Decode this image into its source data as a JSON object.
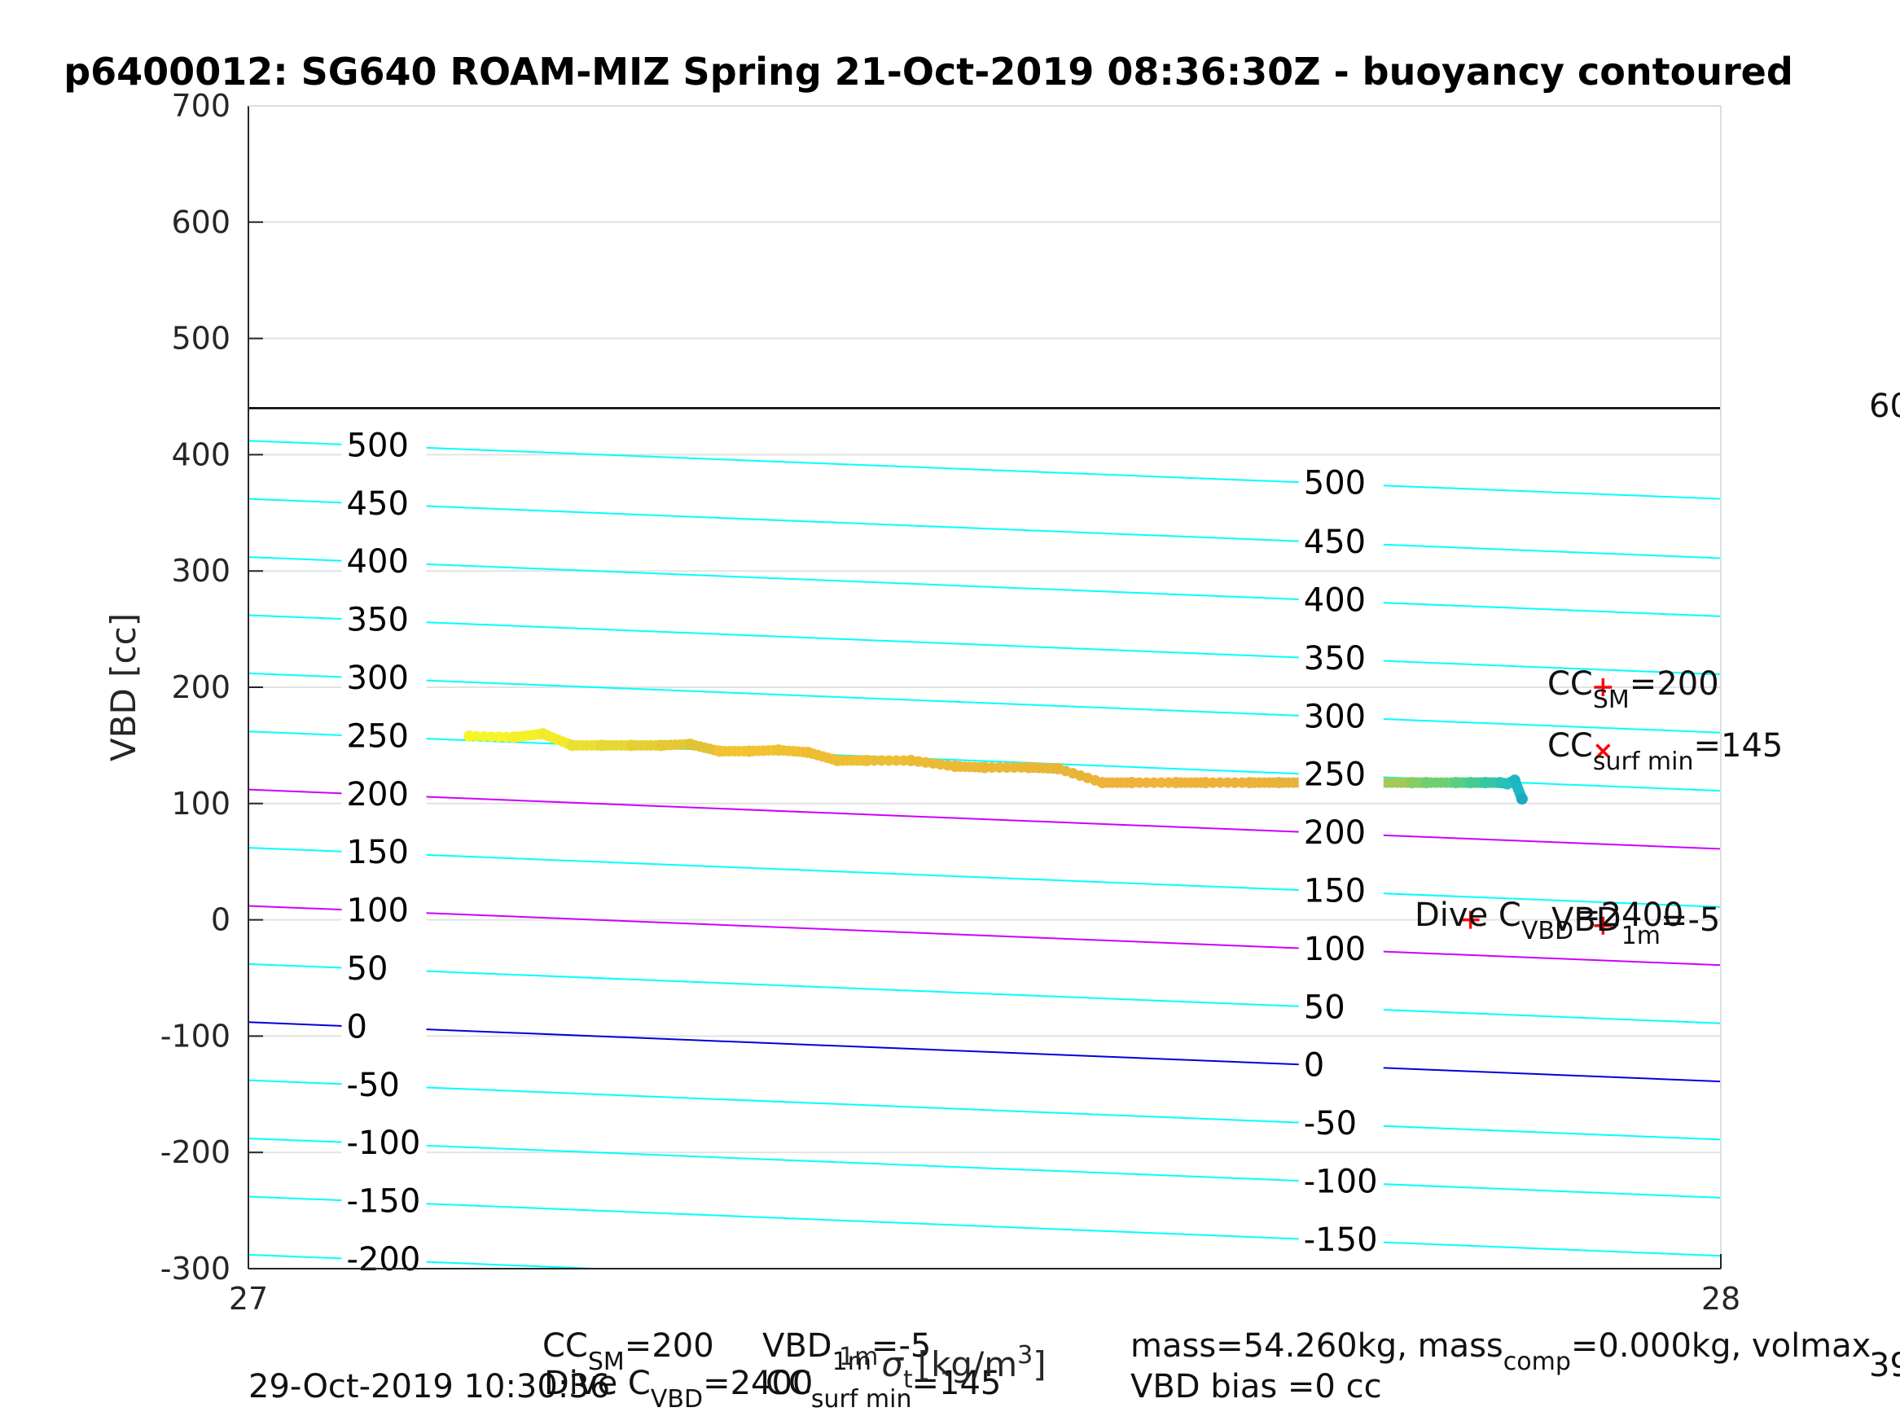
{
  "chart_data": {
    "type": "scatter",
    "title": "p6400012: SG640 ROAM-MIZ Spring 21-Oct-2019 08:36:30Z - buoyancy contoured",
    "ylabel": "VBD [cc]",
    "xlabel": "1m σ_t [kg/m^3]",
    "xlim": [
      27,
      28
    ],
    "ylim": [
      -300,
      700
    ],
    "xticks": [
      "27",
      "28"
    ],
    "yticks": [
      "700",
      "600",
      "500",
      "400",
      "300",
      "200",
      "100",
      "0",
      "-100",
      "-200",
      "-300"
    ],
    "grid": true,
    "horizontal_line": {
      "value": 440,
      "color": "#000000"
    },
    "contours": [
      {
        "level": 500,
        "y_left": 412,
        "y_right": 362,
        "color": "#00ffff",
        "label": "500"
      },
      {
        "level": 450,
        "y_left": 362,
        "y_right": 311,
        "color": "#00ffff",
        "label": "450"
      },
      {
        "level": 400,
        "y_left": 312,
        "y_right": 261,
        "color": "#00ffff",
        "label": "400"
      },
      {
        "level": 350,
        "y_left": 262,
        "y_right": 211,
        "color": "#00ffff",
        "label": "350"
      },
      {
        "level": 300,
        "y_left": 212,
        "y_right": 161,
        "color": "#00ffff",
        "label": "300"
      },
      {
        "level": 250,
        "y_left": 162,
        "y_right": 111,
        "color": "#00ffff",
        "label": "250"
      },
      {
        "level": 200,
        "y_left": 112,
        "y_right": 61,
        "color": "#cc00ff",
        "label": "200"
      },
      {
        "level": 150,
        "y_left": 62,
        "y_right": 11,
        "color": "#00ffff",
        "label": "150"
      },
      {
        "level": 100,
        "y_left": 12,
        "y_right": -39,
        "color": "#cc00ff",
        "label": "100"
      },
      {
        "level": 50,
        "y_left": -38,
        "y_right": -89,
        "color": "#00ffff",
        "label": "50"
      },
      {
        "level": 0,
        "y_left": -88,
        "y_right": -139,
        "color": "#0000dd",
        "label": "0"
      },
      {
        "level": -50,
        "y_left": -138,
        "y_right": -189,
        "color": "#00ffff",
        "label": "-50"
      },
      {
        "level": -100,
        "y_left": -188,
        "y_right": -239,
        "color": "#00ffff",
        "label": "-100"
      },
      {
        "level": -150,
        "y_left": -238,
        "y_right": -289,
        "color": "#00ffff",
        "label": "-150"
      },
      {
        "level": -200,
        "y_left": -288,
        "y_right": -339,
        "color": "#00ffff",
        "label": "-200"
      }
    ],
    "series": [
      {
        "x": [
          27.15,
          27.18,
          27.2,
          27.22,
          27.24,
          27.26,
          27.28,
          27.3,
          27.32,
          27.34,
          27.36,
          27.38,
          27.4,
          27.42,
          27.45,
          27.48,
          27.5,
          27.53,
          27.55,
          27.58,
          27.6,
          27.63,
          27.65,
          27.68,
          27.7,
          27.72,
          27.75,
          27.77,
          27.79,
          27.8,
          27.82,
          27.83,
          27.84,
          27.85,
          27.855,
          27.86,
          27.865
        ],
        "y": [
          158,
          157,
          160,
          150,
          150,
          150,
          150,
          151,
          145,
          145,
          146,
          144,
          137,
          137,
          137,
          132,
          131,
          131,
          130,
          118,
          118,
          118,
          118,
          118,
          118,
          118,
          118,
          118,
          118,
          118,
          118,
          118,
          118,
          118,
          117,
          120,
          104
        ],
        "colors": [
          "#f7f52a",
          "#f5f02a",
          "#f4ea2c",
          "#eadf33",
          "#e8d733",
          "#e6cf34",
          "#e5c834",
          "#e3c235",
          "#f3c430",
          "#f2c231",
          "#f0c032",
          "#f0bc33",
          "#eebf33",
          "#edbd34",
          "#ecbb35",
          "#ebb935",
          "#eab836",
          "#e9b636",
          "#e8b537",
          "#f0b23a",
          "#efb23a",
          "#eeb23a",
          "#edb13a",
          "#ebb13b",
          "#e6b43d",
          "#cfbe43",
          "#b8c54a",
          "#a2ca55",
          "#88cd62",
          "#6fcf70",
          "#58cf80",
          "#44cc90",
          "#36c7a0",
          "#2ec2ae",
          "#26bfbb",
          "#1db8c2",
          "#1aa9c2"
        ]
      }
    ],
    "markers": [
      {
        "symbol": "+",
        "x": 27.92,
        "y": 200,
        "color": "#ff0000"
      },
      {
        "symbol": "x",
        "x": 27.92,
        "y": 145,
        "color": "#ff0000"
      },
      {
        "symbol": "+",
        "x": 27.83,
        "y": 0,
        "color": "#ff0000"
      },
      {
        "symbol": "+",
        "x": 27.92,
        "y": -5,
        "color": "#ff0000"
      }
    ]
  },
  "annotations": {
    "cc_sm": {
      "base": "CC",
      "sub": "SM",
      "rest": "=200"
    },
    "cc_surf_min": {
      "base": "CC",
      "sub": "surf min",
      "rest": "=145"
    },
    "dive_c": {
      "base": "Dive C",
      "sub": "VBD",
      "rest": "=2400"
    },
    "vbd_1m": {
      "base": "VBD",
      "sub": "1m",
      "rest": "=-5"
    },
    "right_edge_top": "60",
    "right_edge_bottom": "39"
  },
  "footer": {
    "timestamp": "29-Oct-2019 10:30:36",
    "cc_sm": {
      "base": "CC",
      "sub": "SM",
      "rest": "=200"
    },
    "vbd_1m": {
      "base": "VBD",
      "sub": "1m",
      "rest": "=-5"
    },
    "dive_c": {
      "base": "Dive C",
      "sub": "VBD",
      "rest": "=2400"
    },
    "cc_surf_min": {
      "base": "CC",
      "sub": "surf min",
      "rest": "=145"
    },
    "mass_line": {
      "part1": "mass=54.260kg, mass",
      "sub": "comp",
      "part2": "=0.000kg, volmax"
    },
    "vbd_bias": "VBD bias =0 cc"
  }
}
